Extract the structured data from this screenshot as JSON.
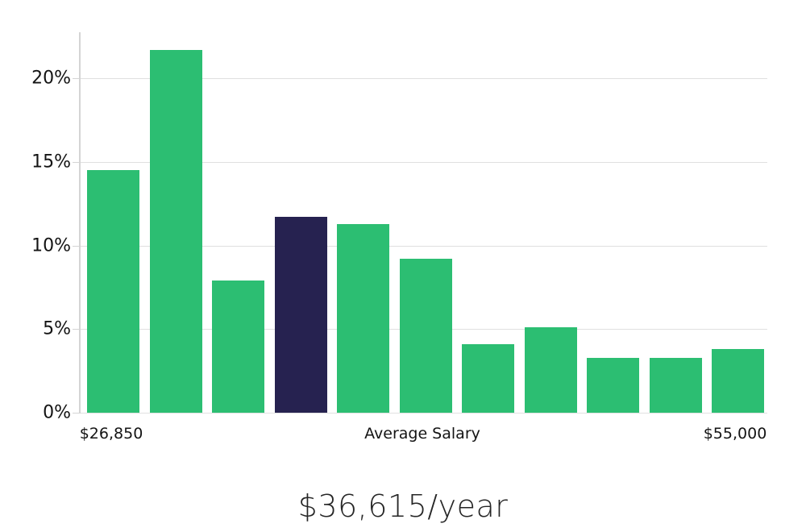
{
  "chart_data": {
    "type": "bar",
    "title": "$36,615/year",
    "x_axis": {
      "left_label": "$26,850",
      "center_label": "Average Salary",
      "right_label": "$55,000"
    },
    "y_axis": {
      "tick_labels": [
        "0%",
        "5%",
        "10%15%",
        "20%"
      ],
      "ticks": [
        {
          "label": "0%",
          "value": 0
        },
        {
          "label": "5%",
          "value": 5
        },
        {
          "label": "10%",
          "value": 10
        },
        {
          "label": "15%",
          "value": 15
        },
        {
          "label": "20%",
          "value": 20
        }
      ],
      "unit": "percent",
      "range": [
        0,
        22.8
      ],
      "grid": true
    },
    "series": [
      {
        "name": "salary-bin-share",
        "values": [
          14.5,
          21.7,
          7.9,
          11.7,
          11.3,
          9.2,
          4.1,
          5.1,
          3.3,
          3.3,
          3.8
        ]
      }
    ],
    "highlighted_bar_index": 3,
    "legend_position": "none",
    "colors": {
      "bar": "#2cbe72",
      "highlighted_bar": "#262250",
      "gridline": "#e0e0e0",
      "axis_line": "#d4d4d4",
      "text": "#141414",
      "title_text": "#262626",
      "background": "#ffffff"
    }
  }
}
